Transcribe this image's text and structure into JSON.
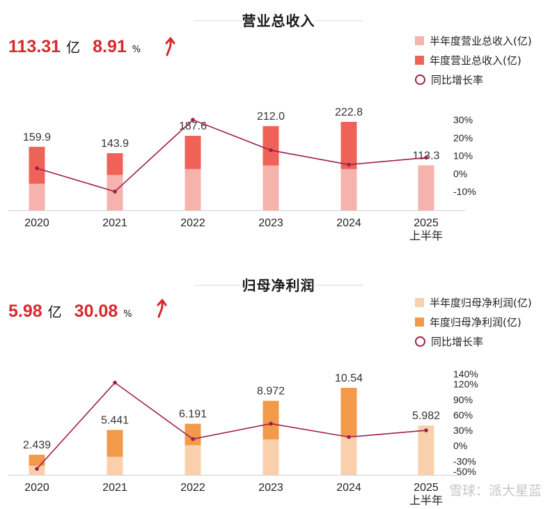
{
  "colors": {
    "rev_half": "#f6b3ad",
    "rev_full": "#ef6257",
    "profit_half": "#f9d0ab",
    "profit_full": "#f3994a",
    "growth_line": "#9e1e4e",
    "headline_red": "#d7282d"
  },
  "watermark": "雪球：派大星蓝",
  "chart_data": [
    {
      "type": "bar",
      "title": "营业总收入",
      "headline": {
        "value": "113.31",
        "unit": "亿",
        "growth": "8.91",
        "growth_unit": "%"
      },
      "legend": [
        "半年度营业总收入(亿)",
        "年度营业总收入(亿)",
        "同比增长率"
      ],
      "categories": [
        "2020",
        "2021",
        "2022",
        "2023",
        "2024",
        "2025\n上半年"
      ],
      "category_lines": [
        [
          "2020"
        ],
        [
          "2021"
        ],
        [
          "2022"
        ],
        [
          "2023"
        ],
        [
          "2024"
        ],
        [
          "2025",
          "上半年"
        ]
      ],
      "series": [
        {
          "name": "半年度营业总收入(亿)",
          "values": [
            67,
            89,
            104,
            113,
            104,
            113.3
          ]
        },
        {
          "name": "年度营业总收入(亿)",
          "values": [
            159.9,
            143.9,
            187.6,
            212.0,
            222.8,
            null
          ]
        },
        {
          "name": "同比增长率",
          "axis": "right",
          "values": [
            3,
            -10,
            30,
            13,
            5,
            8.9
          ]
        }
      ],
      "value_labels": [
        "159.9",
        "143.9",
        "187.6",
        "212.0",
        "222.8",
        "113.3"
      ],
      "ylim": [
        0,
        240
      ],
      "y2lim": [
        -15,
        30
      ],
      "y2ticks": [
        30,
        20,
        10,
        0,
        -10
      ],
      "y2ticklabels": [
        "30%",
        "20%",
        "10%",
        "0%",
        "-10%"
      ]
    },
    {
      "type": "bar",
      "title": "归母净利润",
      "headline": {
        "value": "5.98",
        "unit": "亿",
        "growth": "30.08",
        "growth_unit": "%"
      },
      "legend": [
        "半年度归母净利润(亿)",
        "年度归母净利润(亿)",
        "同比增长率"
      ],
      "categories": [
        "2020",
        "2021",
        "2022",
        "2023",
        "2024",
        "2025\n上半年"
      ],
      "category_lines": [
        [
          "2020"
        ],
        [
          "2021"
        ],
        [
          "2022"
        ],
        [
          "2023"
        ],
        [
          "2024"
        ],
        [
          "2025",
          "上半年"
        ]
      ],
      "series": [
        {
          "name": "半年度归母净利润(亿)",
          "values": [
            1.1,
            2.2,
            3.6,
            4.3,
            4.7,
            5.982
          ]
        },
        {
          "name": "年度归母净利润(亿)",
          "values": [
            2.439,
            5.441,
            6.191,
            8.972,
            10.54,
            null
          ]
        },
        {
          "name": "同比增长率",
          "axis": "right",
          "values": [
            -45,
            123,
            13,
            43,
            17,
            30
          ]
        }
      ],
      "value_labels": [
        "2.439",
        "5.441",
        "6.191",
        "8.972",
        "10.54",
        "5.982"
      ],
      "ylim": [
        0,
        11.5
      ],
      "y2lim": [
        -50,
        140
      ],
      "y2ticks": [
        140,
        120,
        90,
        60,
        30,
        0,
        -30,
        -50
      ],
      "y2ticklabels": [
        "140%",
        "120%",
        "90%",
        "60%",
        "30%",
        "0%",
        "-30%",
        "-50%"
      ]
    }
  ]
}
